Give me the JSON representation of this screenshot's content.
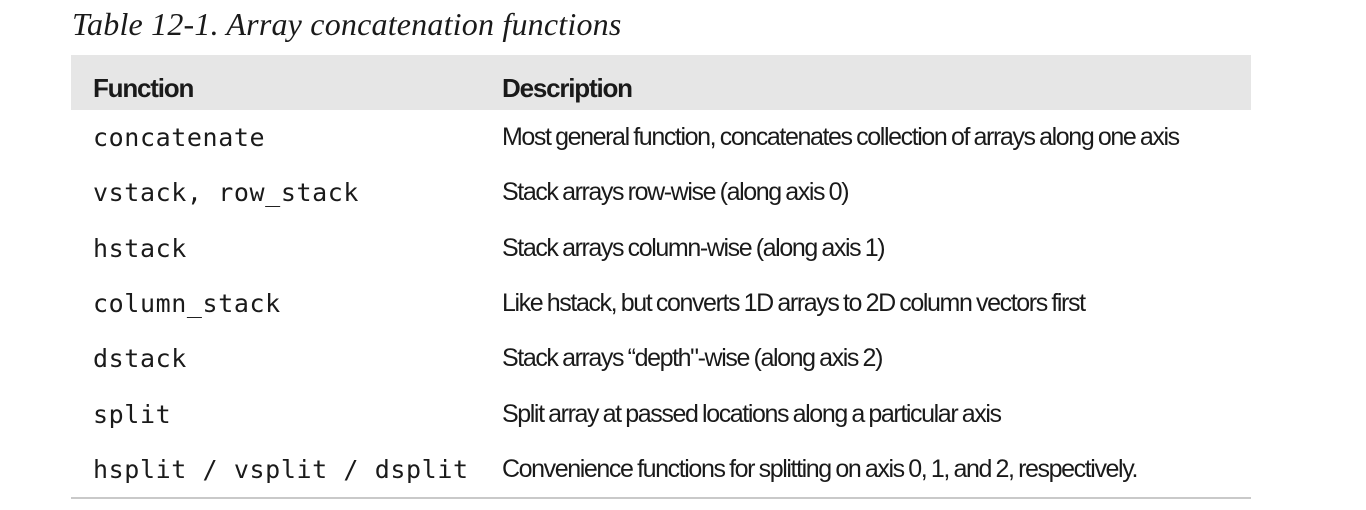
{
  "caption": "Table 12-1. Array concatenation functions",
  "table": {
    "headers": [
      "Function",
      "Description"
    ],
    "rows": [
      {
        "function": "concatenate",
        "description": "Most general function, concatenates collection of arrays along one axis"
      },
      {
        "function": "vstack, row_stack",
        "description": "Stack arrays row-wise (along axis 0)"
      },
      {
        "function": "hstack",
        "description": "Stack arrays column-wise (along axis 1)"
      },
      {
        "function": "column_stack",
        "description": "Like hstack, but converts 1D arrays to 2D column vectors first"
      },
      {
        "function": "dstack",
        "description": "Stack arrays “depth\"-wise (along axis 2)"
      },
      {
        "function": "split",
        "description": "Split array at passed locations along a particular axis"
      },
      {
        "function": "hsplit / vsplit / dsplit",
        "description": "Convenience functions for splitting on axis 0, 1, and 2, respectively."
      }
    ]
  }
}
